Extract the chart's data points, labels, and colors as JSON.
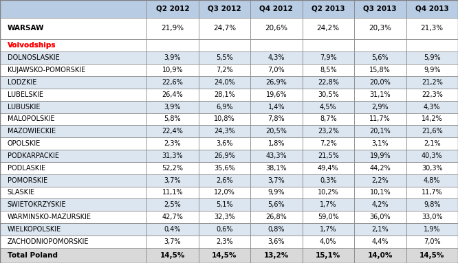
{
  "columns": [
    "Q2 2012",
    "Q3 2012",
    "Q4 2012",
    "Q2 2013",
    "Q3 2013",
    "Q4 2013"
  ],
  "warsaw_row": [
    "21,9%",
    "24,7%",
    "20,6%",
    "24,2%",
    "20,3%",
    "21,3%"
  ],
  "voivodships": [
    "DOLNOSLASKIE",
    "KUJAWSKO-POMORSKIE",
    "LODZKIE",
    "LUBELSKIE",
    "LUBUSKIE",
    "MALOPOLSKIE",
    "MAZOWIECKIE",
    "OPOLSKIE",
    "PODKARPACKIE",
    "PODLASKIE",
    "POMORSKIE",
    "SLASKIE",
    "SWIETOKRZYSKIE",
    "WARMINSKO-MAZURSKIE",
    "WIELKOPOLSKIE",
    "ZACHODNIOPOMORSKIE"
  ],
  "voivodship_data": [
    [
      "3,9%",
      "5,5%",
      "4,3%",
      "7,9%",
      "5,6%",
      "5,9%"
    ],
    [
      "10,9%",
      "7,2%",
      "7,0%",
      "8,5%",
      "15,8%",
      "9,9%"
    ],
    [
      "22,6%",
      "24,0%",
      "26,9%",
      "22,8%",
      "20,0%",
      "21,2%"
    ],
    [
      "26,4%",
      "28,1%",
      "19,6%",
      "30,5%",
      "31,1%",
      "22,3%"
    ],
    [
      "3,9%",
      "6,9%",
      "1,4%",
      "4,5%",
      "2,9%",
      "4,3%"
    ],
    [
      "5,8%",
      "10,8%",
      "7,8%",
      "8,7%",
      "11,7%",
      "14,2%"
    ],
    [
      "22,4%",
      "24,3%",
      "20,5%",
      "23,2%",
      "20,1%",
      "21,6%"
    ],
    [
      "2,3%",
      "3,6%",
      "1,8%",
      "7,2%",
      "3,1%",
      "2,1%"
    ],
    [
      "31,3%",
      "26,9%",
      "43,3%",
      "21,5%",
      "19,9%",
      "40,3%"
    ],
    [
      "52,2%",
      "35,6%",
      "38,1%",
      "49,4%",
      "44,2%",
      "30,3%"
    ],
    [
      "3,7%",
      "2,6%",
      "3,7%",
      "0,3%",
      "2,2%",
      "4,8%"
    ],
    [
      "11,1%",
      "12,0%",
      "9,9%",
      "10,2%",
      "10,1%",
      "11,7%"
    ],
    [
      "2,5%",
      "5,1%",
      "5,6%",
      "1,7%",
      "4,2%",
      "9,8%"
    ],
    [
      "42,7%",
      "32,3%",
      "26,8%",
      "59,0%",
      "36,0%",
      "33,0%"
    ],
    [
      "0,4%",
      "0,6%",
      "0,8%",
      "1,7%",
      "2,1%",
      "1,9%"
    ],
    [
      "3,7%",
      "2,3%",
      "3,6%",
      "4,0%",
      "4,4%",
      "7,0%"
    ]
  ],
  "total_row": [
    "14,5%",
    "14,5%",
    "13,2%",
    "15,1%",
    "14,0%",
    "14,5%"
  ],
  "header_bg": "#b8cce4",
  "alt_row_bg": "#dce6f1",
  "total_row_bg": "#d9d9d9",
  "border_color": "#000000",
  "text_color": "#000000",
  "voivodship_label_color": "#ff0000",
  "header_text_color": "#000000"
}
